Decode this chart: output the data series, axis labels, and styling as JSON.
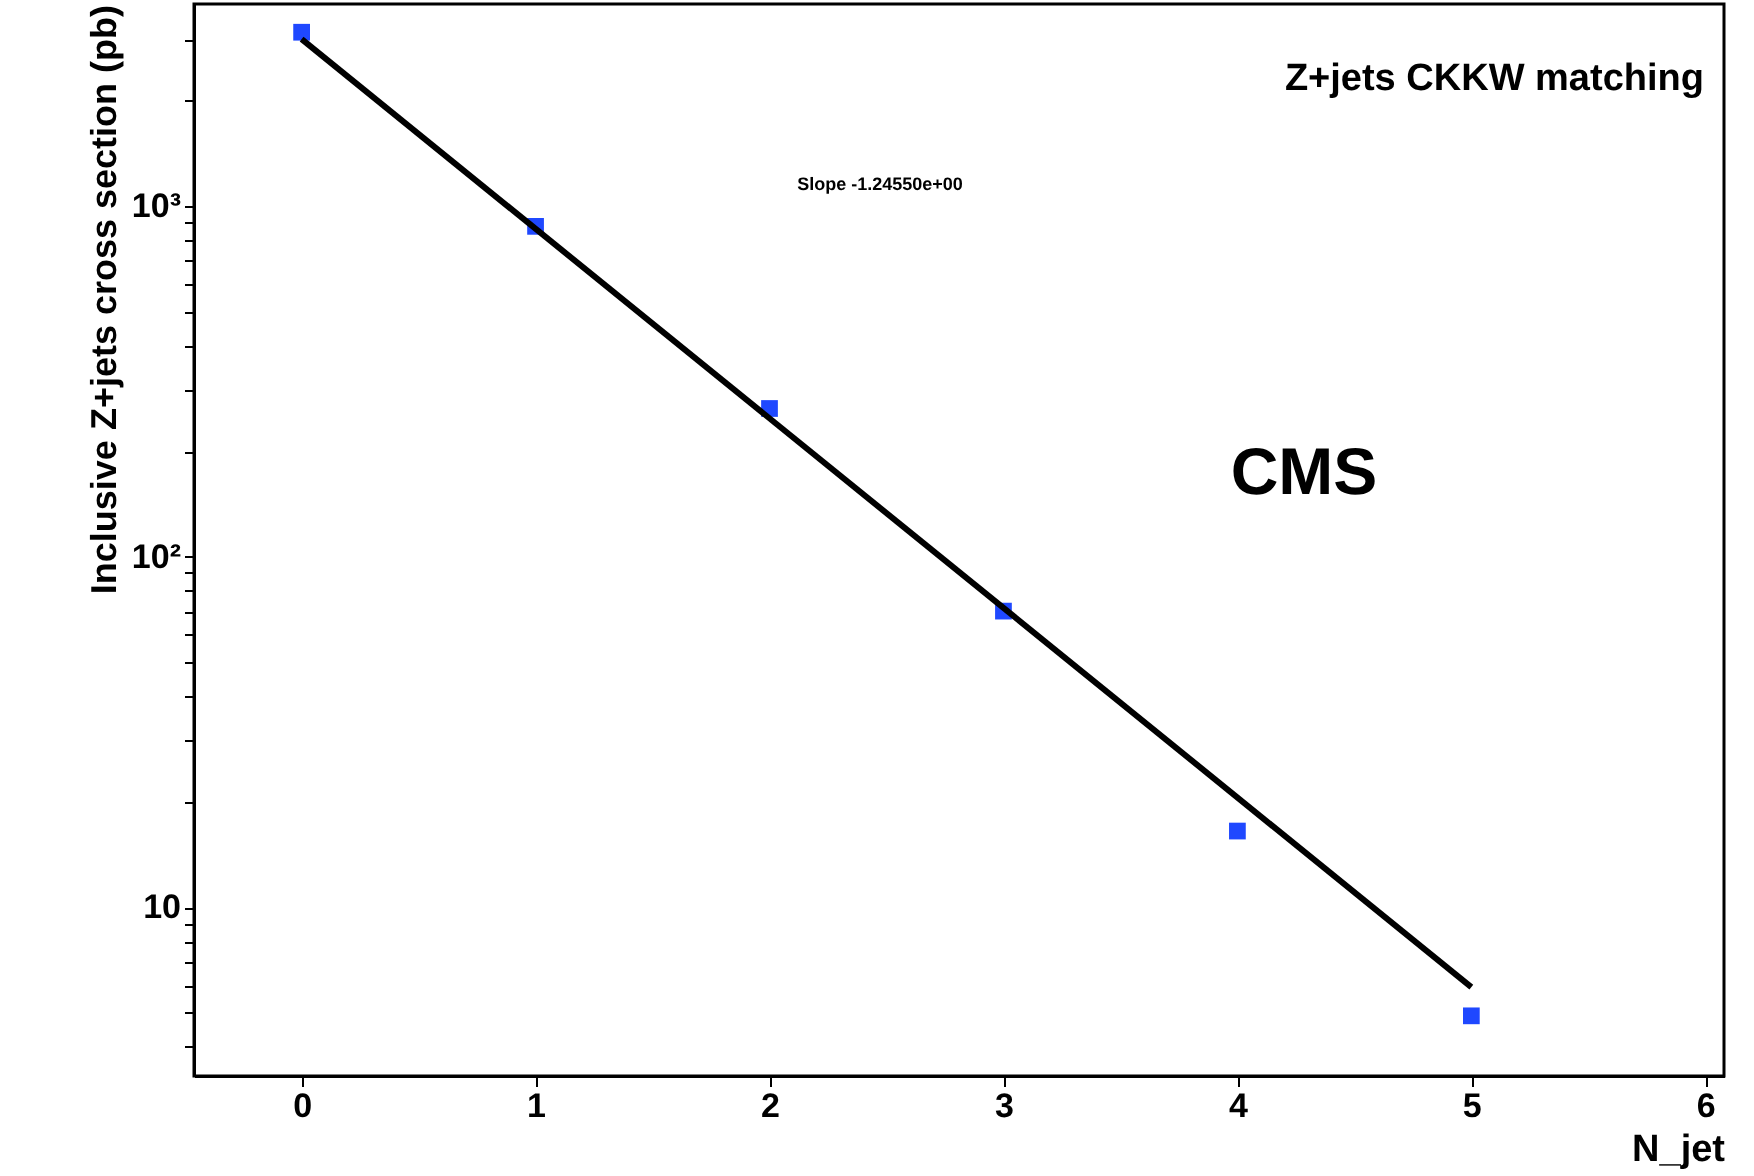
{
  "chart_data": {
    "type": "scatter",
    "title": "Z+jets CKKW matching",
    "xlabel": "N_jet",
    "ylabel": "Inclusive Z+jets cross section (pb)",
    "annotations": [
      "Slope -1.24550e+00",
      "CMS"
    ],
    "x": [
      0,
      1,
      2,
      3,
      4,
      5
    ],
    "series": [
      {
        "color": "#1f48ff",
        "marker": "square",
        "values": [
          3140,
          877,
          265,
          70,
          16.5,
          4.9
        ]
      },
      {
        "type": "line",
        "color": "#000000",
        "marker": "none",
        "line_style": "solid",
        "x": [
          0,
          5
        ],
        "values": [
          3000,
          5.92
        ]
      }
    ],
    "log": "y",
    "grid": false,
    "xlim": [
      -0.46,
      6.08
    ],
    "ylim": [
      3.3,
      3780
    ],
    "xticks": [
      0,
      1,
      2,
      3,
      4,
      5,
      6
    ],
    "yticks": [
      {
        "value": 4,
        "label": null
      },
      {
        "value": 5,
        "label": null
      },
      {
        "value": 6,
        "label": null
      },
      {
        "value": 7,
        "label": null
      },
      {
        "value": 8,
        "label": null
      },
      {
        "value": 9,
        "label": null
      },
      10,
      {
        "value": 20,
        "label": null
      },
      {
        "value": 30,
        "label": null
      },
      {
        "value": 40,
        "label": null
      },
      {
        "value": 50,
        "label": null
      },
      {
        "value": 60,
        "label": null
      },
      {
        "value": 70,
        "label": null
      },
      {
        "value": 80,
        "label": null
      },
      {
        "value": 90,
        "label": null
      },
      {
        "value": 100,
        "label": "10²"
      },
      {
        "value": 200,
        "label": null
      },
      {
        "value": 300,
        "label": null
      },
      {
        "value": 400,
        "label": null
      },
      {
        "value": 500,
        "label": null
      },
      {
        "value": 600,
        "label": null
      },
      {
        "value": 700,
        "label": null
      },
      {
        "value": 800,
        "label": null
      },
      {
        "value": 900,
        "label": null
      },
      {
        "value": 1000,
        "label": "10³"
      },
      {
        "value": 2000,
        "label": null
      },
      {
        "value": 3000,
        "label": null
      }
    ]
  }
}
